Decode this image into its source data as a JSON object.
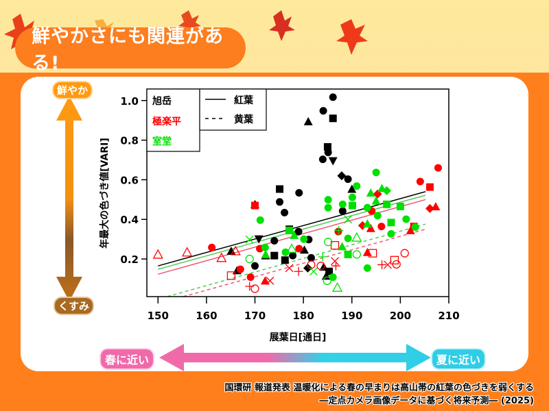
{
  "header": {
    "title": "鮮やかさにも関連がある!"
  },
  "scale_labels": {
    "vivid": "鮮やか",
    "dull": "くすみ",
    "spring": "春に近い",
    "summer": "夏に近い"
  },
  "caption": {
    "line1": "国環研 報道発表 温暖化による春の早まりは高山帯の紅葉の色づきを弱くする",
    "line2": "―定点カメラ画像データに基づく将来予測― (2025)"
  },
  "colors": {
    "accent": "#fd7e1f",
    "travel_pink": "#f06aaa",
    "travel_cyan": "#30cde6"
  },
  "chart_data": {
    "type": "scatter",
    "xlabel": "展葉日[通日]",
    "ylabel": "年最大の色づき値[VARI]",
    "xlim": [
      147.7,
      210
    ],
    "ylim": [
      0.01,
      1.058
    ],
    "xticks": [
      "150",
      "160",
      "170",
      "180",
      "190",
      "200",
      "210"
    ],
    "yticks": [
      "0.2",
      "0.4",
      "0.6",
      "0.8",
      "1.0"
    ],
    "grid": false,
    "legend_sites": [
      {
        "name": "旭岳",
        "color": "#000000"
      },
      {
        "name": "極楽平",
        "color": "#ff0000"
      },
      {
        "name": "室堂",
        "color": "#00e000"
      }
    ],
    "legend_lines": [
      {
        "name": "紅葉",
        "style": "solid"
      },
      {
        "name": "黄葉",
        "style": "dashed"
      }
    ],
    "legend_placement": "top-left",
    "points": [
      [
        186.1,
        1.017,
        0,
        "circle"
      ],
      [
        184.1,
        0.948,
        0,
        "circle"
      ],
      [
        186.1,
        0.91,
        0,
        "square"
      ],
      [
        181.0,
        0.894,
        0,
        "triangle"
      ],
      [
        185.0,
        0.766,
        0,
        "square"
      ],
      [
        185.1,
        0.738,
        0,
        "circle"
      ],
      [
        184.0,
        0.703,
        0,
        "circle"
      ],
      [
        186.1,
        0.695,
        0,
        "triangle-down"
      ],
      [
        187.9,
        0.62,
        0,
        "diamond"
      ],
      [
        189.2,
        0.603,
        0,
        "circle"
      ],
      [
        190.0,
        0.553,
        0,
        "triangle"
      ],
      [
        175.1,
        0.553,
        0,
        "square"
      ],
      [
        179.1,
        0.534,
        0,
        "circle"
      ],
      [
        175.1,
        0.488,
        0,
        "circle"
      ],
      [
        176.1,
        0.434,
        0,
        "circle"
      ],
      [
        188.1,
        0.442,
        0,
        "circle"
      ],
      [
        170.0,
        0.476,
        0,
        "triangle"
      ],
      [
        177.1,
        0.35,
        0,
        "square"
      ],
      [
        179.0,
        0.338,
        0,
        "circle"
      ],
      [
        170.8,
        0.3,
        0,
        "triangle-down"
      ],
      [
        174.0,
        0.292,
        0,
        "circle"
      ],
      [
        181.1,
        0.298,
        0,
        "circle"
      ],
      [
        174.0,
        0.217,
        0,
        "square"
      ],
      [
        176.2,
        0.194,
        0,
        "square"
      ],
      [
        177.8,
        0.217,
        0,
        "circle"
      ],
      [
        181.6,
        0.206,
        0,
        "circle"
      ],
      [
        180.9,
        0.154,
        0,
        "diamond"
      ],
      [
        184.2,
        0.16,
        0,
        "triangle"
      ],
      [
        185.3,
        0.137,
        0,
        "square"
      ],
      [
        184.7,
        0.114,
        0,
        "triangle"
      ],
      [
        170.0,
        0.165,
        0,
        "circle"
      ],
      [
        166.3,
        0.142,
        0,
        "triangle"
      ],
      [
        165.1,
        0.24,
        0,
        "triangle"
      ],
      [
        172.2,
        0.217,
        0,
        "triangle"
      ],
      [
        180.2,
        0.246,
        0,
        "triangle"
      ],
      [
        150.0,
        0.223,
        1,
        "triangle-open"
      ],
      [
        156.0,
        0.234,
        1,
        "triangle-open"
      ],
      [
        163.1,
        0.206,
        1,
        "triangle-open"
      ],
      [
        166.0,
        0.24,
        1,
        "triangle-open"
      ],
      [
        161.1,
        0.258,
        1,
        "circle"
      ],
      [
        170.0,
        0.47,
        1,
        "square"
      ],
      [
        167.0,
        0.148,
        1,
        "circle"
      ],
      [
        169.1,
        0.108,
        1,
        "circle"
      ],
      [
        165.1,
        0.116,
        1,
        "square-open"
      ],
      [
        170.0,
        0.05,
        1,
        "circle-open"
      ],
      [
        168.9,
        0.062,
        1,
        "plus"
      ],
      [
        172.1,
        0.09,
        1,
        "triangle"
      ],
      [
        173.1,
        0.09,
        1,
        "x"
      ],
      [
        171.0,
        0.252,
        1,
        "circle"
      ],
      [
        179.1,
        0.252,
        1,
        "circle"
      ],
      [
        179.0,
        0.137,
        1,
        "plus"
      ],
      [
        177.1,
        0.154,
        1,
        "x"
      ],
      [
        181.6,
        0.171,
        1,
        "circle-open"
      ],
      [
        183.6,
        0.165,
        1,
        "circle-open"
      ],
      [
        186.5,
        0.189,
        1,
        "x"
      ],
      [
        186.7,
        0.165,
        1,
        "plus"
      ],
      [
        186.5,
        0.269,
        1,
        "square-open"
      ],
      [
        187.2,
        0.338,
        1,
        "circle"
      ],
      [
        192.2,
        0.369,
        1,
        "diamond"
      ],
      [
        193.9,
        0.355,
        1,
        "triangle"
      ],
      [
        193.2,
        0.234,
        1,
        "triangle"
      ],
      [
        194.3,
        0.229,
        1,
        "square-open"
      ],
      [
        196.1,
        0.364,
        1,
        "circle"
      ],
      [
        196.2,
        0.171,
        1,
        "plus"
      ],
      [
        197.4,
        0.171,
        1,
        "x"
      ],
      [
        198.8,
        0.194,
        1,
        "square-open"
      ],
      [
        199.2,
        0.173,
        1,
        "circle-open"
      ],
      [
        200.9,
        0.229,
        1,
        "circle-open"
      ],
      [
        202.1,
        0.344,
        1,
        "triangle"
      ],
      [
        202.8,
        0.364,
        1,
        "square"
      ],
      [
        204.1,
        0.591,
        1,
        "circle"
      ],
      [
        206.1,
        0.563,
        1,
        "square"
      ],
      [
        207.8,
        0.66,
        1,
        "circle"
      ],
      [
        206.1,
        0.455,
        1,
        "diamond"
      ],
      [
        207.3,
        0.465,
        1,
        "triangle"
      ],
      [
        195.3,
        0.528,
        1,
        "diamond"
      ],
      [
        194.1,
        0.442,
        1,
        "circle"
      ],
      [
        171.1,
        0.396,
        2,
        "circle"
      ],
      [
        168.9,
        0.298,
        2,
        "x"
      ],
      [
        168.9,
        0.2,
        2,
        "circle-open"
      ],
      [
        172.1,
        0.258,
        2,
        "circle"
      ],
      [
        172.2,
        0.223,
        2,
        "triangle"
      ],
      [
        176.3,
        0.234,
        2,
        "circle"
      ],
      [
        177.6,
        0.252,
        2,
        "triangle-open"
      ],
      [
        177.1,
        0.344,
        2,
        "square"
      ],
      [
        178.1,
        0.32,
        2,
        "triangle"
      ],
      [
        180.1,
        0.3,
        2,
        "circle"
      ],
      [
        182.1,
        0.137,
        2,
        "x"
      ],
      [
        184.0,
        0.211,
        2,
        "plus"
      ],
      [
        185.1,
        0.286,
        2,
        "circle-open"
      ],
      [
        186.1,
        0.108,
        2,
        "circle"
      ],
      [
        184.9,
        0.09,
        2,
        "circle-open"
      ],
      [
        187.0,
        0.056,
        2,
        "triangle-open"
      ],
      [
        185.1,
        0.459,
        2,
        "circle"
      ],
      [
        185.1,
        0.499,
        2,
        "circle"
      ],
      [
        188.1,
        0.476,
        2,
        "circle"
      ],
      [
        190.1,
        0.511,
        2,
        "circle"
      ],
      [
        190.1,
        0.47,
        2,
        "square"
      ],
      [
        191.0,
        0.568,
        2,
        "circle"
      ],
      [
        189.2,
        0.4,
        2,
        "x"
      ],
      [
        187.3,
        0.344,
        2,
        "plus"
      ],
      [
        189.2,
        0.304,
        2,
        "circle"
      ],
      [
        188.0,
        0.263,
        2,
        "triangle"
      ],
      [
        189.2,
        0.223,
        2,
        "square"
      ],
      [
        191.0,
        0.309,
        2,
        "triangle-open"
      ],
      [
        191.0,
        0.223,
        2,
        "circle-open"
      ],
      [
        193.2,
        0.378,
        2,
        "triangle"
      ],
      [
        193.2,
        0.154,
        2,
        "circle"
      ],
      [
        193.2,
        0.459,
        2,
        "circle"
      ],
      [
        195.0,
        0.637,
        2,
        "circle"
      ],
      [
        193.9,
        0.534,
        2,
        "triangle"
      ],
      [
        195.0,
        0.494,
        2,
        "triangle"
      ],
      [
        196.2,
        0.557,
        2,
        "triangle"
      ],
      [
        197.2,
        0.545,
        2,
        "diamond"
      ],
      [
        195.3,
        0.419,
        2,
        "circle"
      ],
      [
        197.2,
        0.476,
        2,
        "square"
      ],
      [
        198.1,
        0.384,
        2,
        "square"
      ],
      [
        198.1,
        0.327,
        2,
        "circle"
      ],
      [
        200.0,
        0.465,
        2,
        "square"
      ],
      [
        201.2,
        0.401,
        2,
        "circle"
      ],
      [
        203.1,
        0.361,
        2,
        "circle"
      ]
    ],
    "trend_lines": [
      {
        "site": 0,
        "style": "solid",
        "from": [
          150,
          0.165
        ],
        "to": [
          205.2,
          0.54
        ]
      },
      {
        "site": 2,
        "style": "solid",
        "from": [
          150,
          0.148
        ],
        "to": [
          205.2,
          0.522
        ]
      },
      {
        "site": 1,
        "style": "solid",
        "from": [
          150,
          0.123
        ],
        "to": [
          205.2,
          0.5
        ]
      },
      {
        "site": 2,
        "style": "dashed",
        "from": [
          151.9,
          0.01
        ],
        "to": [
          205.2,
          0.376
        ]
      },
      {
        "site": 1,
        "style": "dashed",
        "from": [
          155.2,
          0.01
        ],
        "to": [
          205.2,
          0.35
        ]
      }
    ]
  }
}
